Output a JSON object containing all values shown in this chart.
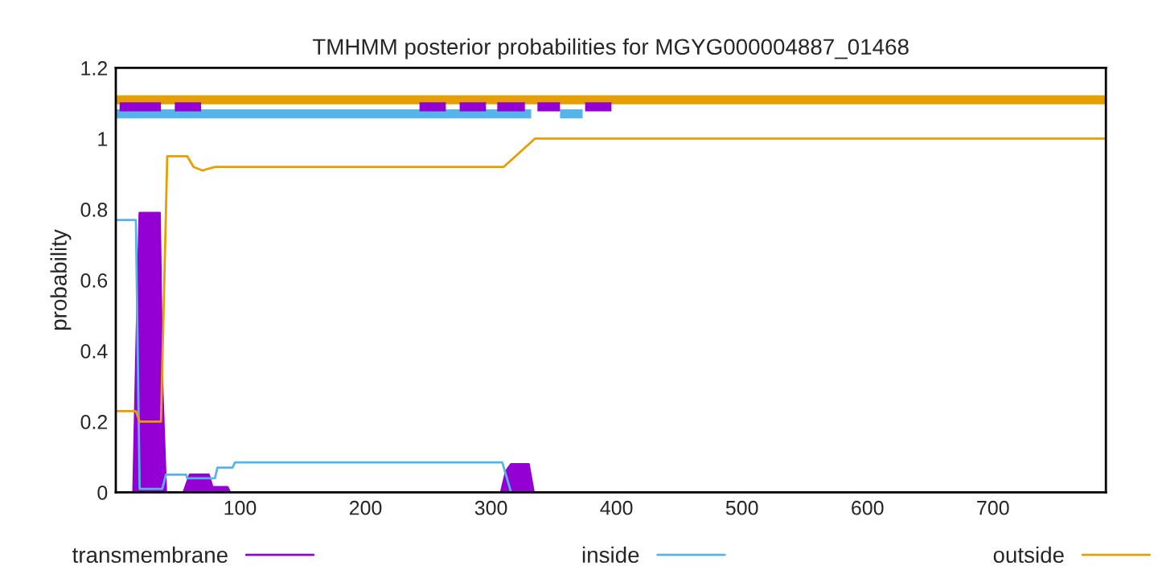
{
  "chart_data": {
    "type": "line",
    "title": "TMHMM posterior probabilities for MGYG000004887_01468",
    "ylabel": "probability",
    "xlim": [
      1,
      790
    ],
    "ylim": [
      0,
      1.2
    ],
    "xticks": [
      100,
      200,
      300,
      400,
      500,
      600,
      700
    ],
    "yticks": [
      0,
      0.2,
      0.4,
      0.6,
      0.8,
      1,
      1.2
    ],
    "grid": false,
    "legend": "bottom",
    "series": [
      {
        "name": "transmembrane",
        "type": "area",
        "color": "#9400d3",
        "x": [
          1,
          15,
          18,
          20,
          36,
          38,
          41,
          55,
          60,
          75,
          78,
          80,
          90,
          92,
          308,
          312,
          316,
          330,
          334,
          790
        ],
        "values": [
          0,
          0,
          0.5,
          0.79,
          0.79,
          0.3,
          0,
          0,
          0.05,
          0.05,
          0.015,
          0.015,
          0.015,
          0,
          0,
          0.06,
          0.08,
          0.08,
          0,
          0
        ]
      },
      {
        "name": "inside",
        "color": "#56b4e9",
        "x": [
          1,
          17,
          20,
          38,
          41,
          57,
          58,
          80,
          82,
          94,
          96,
          309,
          316,
          790
        ],
        "values": [
          0.77,
          0.77,
          0.01,
          0.01,
          0.05,
          0.05,
          0.04,
          0.04,
          0.07,
          0.07,
          0.085,
          0.085,
          0,
          0
        ]
      },
      {
        "name": "outside",
        "color": "#e69f00",
        "x": [
          1,
          17,
          20,
          37,
          42,
          58,
          63,
          70,
          80,
          310,
          335,
          790
        ],
        "values": [
          0.23,
          0.23,
          0.2,
          0.2,
          0.95,
          0.95,
          0.92,
          0.91,
          0.92,
          0.92,
          1.0,
          1.0
        ]
      },
      {
        "type": "step",
        "color": "#e69f00",
        "x": [
          1,
          790
        ],
        "values": [
          1.11,
          1.11
        ]
      },
      {
        "type": "step",
        "color": "#56b4e9",
        "x": [
          1,
          332,
          343,
          355,
          373
        ],
        "values": [
          1.07,
          1.07,
          null,
          1.07,
          1.07
        ]
      },
      {
        "type": "step",
        "color": "#9400d3",
        "x": [
          4,
          37,
          42,
          48,
          69,
          150,
          243,
          264,
          270,
          275,
          296,
          300,
          305,
          327,
          332,
          337,
          355,
          365,
          375,
          396
        ],
        "values": [
          1.09,
          1.09,
          null,
          1.09,
          1.09,
          null,
          1.09,
          1.09,
          null,
          1.09,
          1.09,
          null,
          1.09,
          1.09,
          null,
          1.09,
          1.09,
          null,
          1.09,
          1.09
        ]
      }
    ]
  }
}
